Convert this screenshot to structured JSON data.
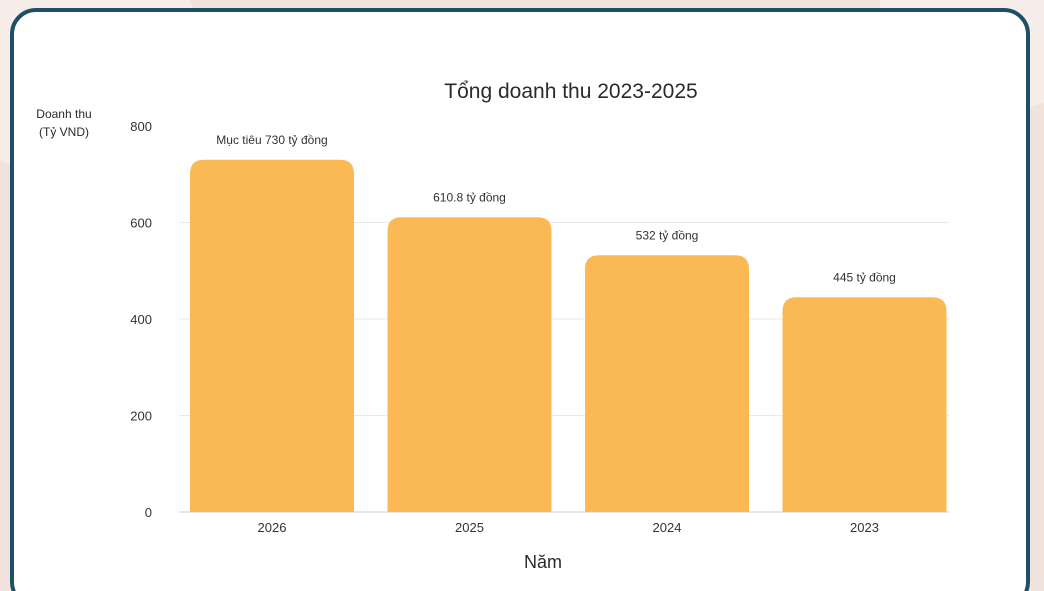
{
  "chart_data": {
    "type": "bar",
    "title": "Tổng doanh thu 2023-2025",
    "ylabel_lines": [
      "Doanh thu",
      "(Tỷ VND)"
    ],
    "xlabel": "Năm",
    "categories": [
      "2026",
      "2025",
      "2024",
      "2023"
    ],
    "values": [
      730,
      610.8,
      532,
      445
    ],
    "data_labels": [
      "Mục tiêu 730 tỷ đồng",
      "610.8 tỷ đồng",
      "532  tỷ đồng",
      "445 tỷ đồng"
    ],
    "ylim": [
      0,
      800
    ],
    "yticks": [
      0,
      200,
      400,
      600,
      800
    ],
    "grid": true,
    "colors": {
      "bar": "#fbb955",
      "grid": "#e9e9e9",
      "text": "#333333",
      "frame": "#1f4f66"
    }
  }
}
